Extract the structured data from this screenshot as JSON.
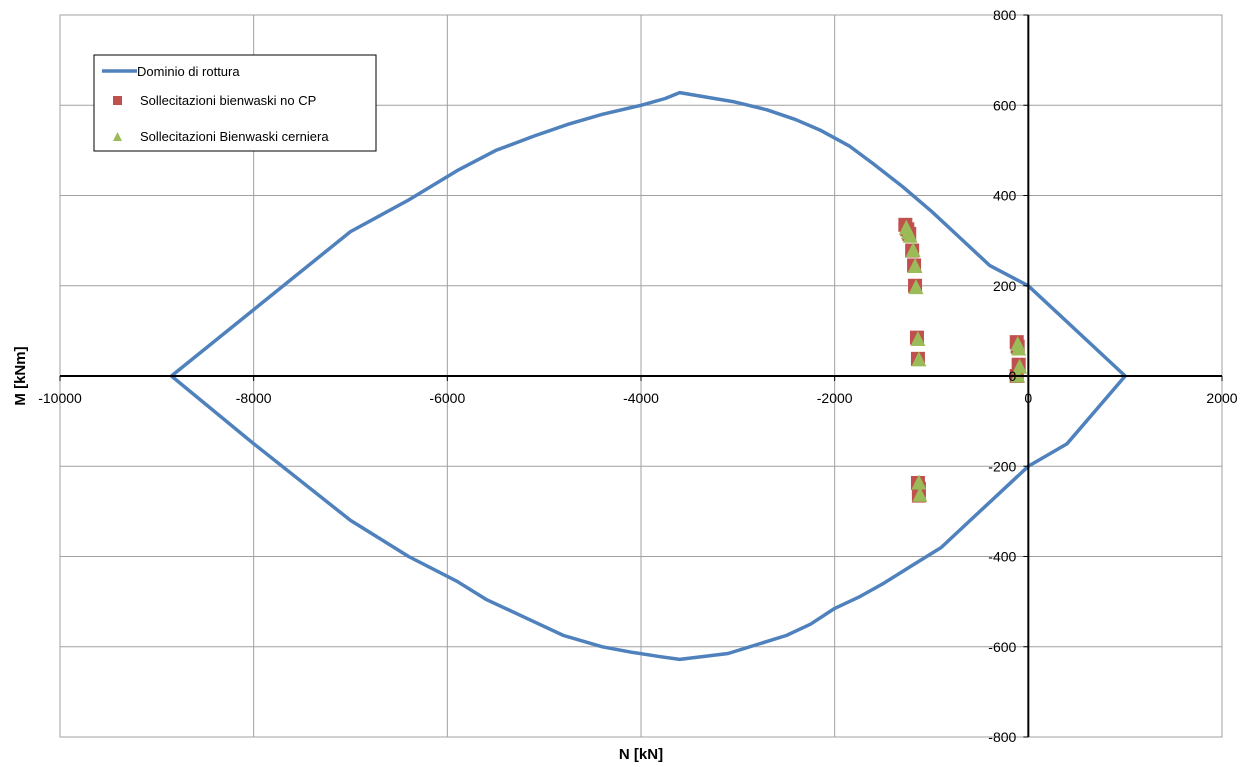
{
  "chart_data": {
    "type": "scatter",
    "xlabel": "N [kN]",
    "ylabel": "M [kNm]",
    "xlim": [
      -10000,
      2000
    ],
    "ylim": [
      -800,
      800
    ],
    "x_ticks": [
      -10000,
      -8000,
      -6000,
      -4000,
      -2000,
      0,
      2000
    ],
    "y_ticks": [
      -800,
      -600,
      -400,
      -200,
      0,
      200,
      400,
      600,
      800
    ],
    "x_tick_labels": [
      "-10000",
      "-8000",
      "-6000",
      "-4000",
      "-2000",
      "0",
      "2000"
    ],
    "y_tick_labels": [
      "-800",
      "-600",
      "-400",
      "-200",
      "0",
      "200",
      "400",
      "600",
      "800"
    ],
    "grid": true,
    "legend_position": "top-left",
    "series": [
      {
        "name": "Dominio di rottura",
        "kind": "line",
        "color": "#4F81BD",
        "x": [
          -8850,
          -7000,
          -6400,
          -5900,
          -5500,
          -5100,
          -4750,
          -4400,
          -4000,
          -3750,
          -3600,
          -3050,
          -2700,
          -2400,
          -2150,
          -1850,
          -1600,
          -1300,
          -1000,
          -700,
          -400,
          0,
          1000,
          400,
          0,
          -300,
          -600,
          -900,
          -1200,
          -1500,
          -1750,
          -2000,
          -2250,
          -2500,
          -2800,
          -3100,
          -3600,
          -3800,
          -4100,
          -4400,
          -4800,
          -5200,
          -5600,
          -5900,
          -6400,
          -7000,
          -8000,
          -8850
        ],
        "y": [
          0,
          320,
          390,
          455,
          500,
          532,
          558,
          580,
          600,
          615,
          628,
          608,
          590,
          568,
          545,
          510,
          470,
          420,
          365,
          305,
          245,
          200,
          0,
          -150,
          -200,
          -260,
          -320,
          -380,
          -420,
          -460,
          -490,
          -515,
          -550,
          -575,
          -595,
          -615,
          -628,
          -622,
          -612,
          -600,
          -575,
          -535,
          -495,
          -455,
          -400,
          -320,
          -150,
          0
        ]
      },
      {
        "name": "Sollecitazioni bienwaski no CP",
        "kind": "scatter",
        "marker": "square",
        "color": "#C0504D",
        "x": [
          -1270,
          -1250,
          -1230,
          -1200,
          -1180,
          -1170,
          -1150,
          -1140,
          -1140,
          -1130,
          -1130,
          -120,
          -110,
          -100,
          -120
        ],
        "y": [
          335,
          325,
          315,
          278,
          245,
          200,
          85,
          38,
          -237,
          -265,
          -250,
          75,
          65,
          25,
          0
        ]
      },
      {
        "name": "Sollecitazioni Bienwaski cerniera",
        "kind": "scatter",
        "marker": "triangle",
        "color": "#9BBB59",
        "x": [
          -1260,
          -1240,
          -1220,
          -1190,
          -1170,
          -1160,
          -1140,
          -1130,
          -1130,
          -1120,
          -110,
          -100,
          -90,
          -110
        ],
        "y": [
          330,
          320,
          312,
          280,
          245,
          198,
          83,
          38,
          -235,
          -262,
          72,
          62,
          22,
          2
        ]
      }
    ]
  }
}
